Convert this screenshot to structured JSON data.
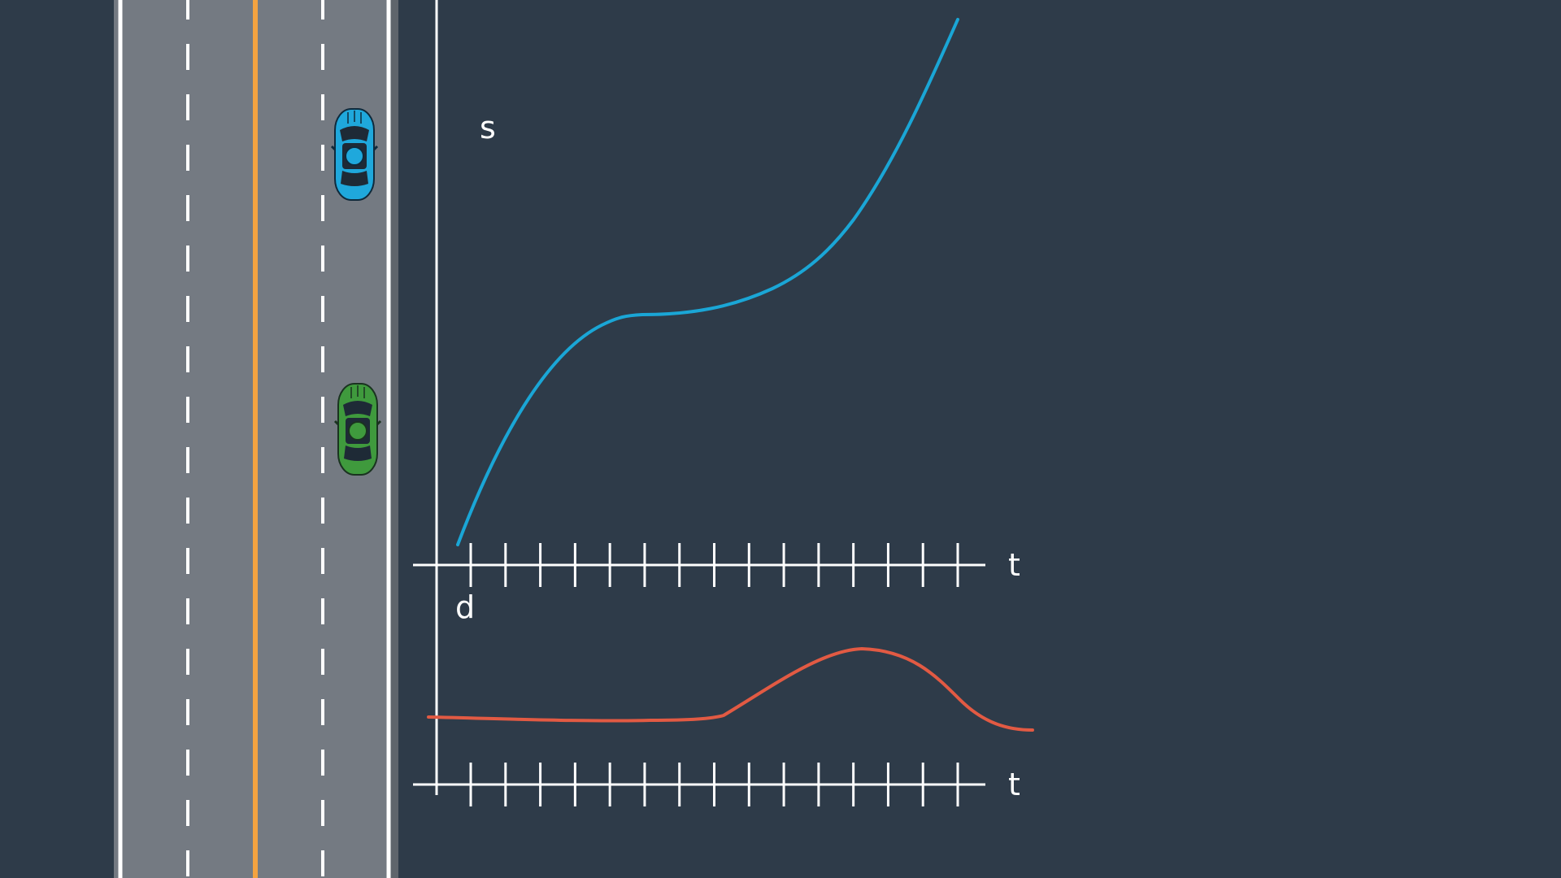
{
  "colors": {
    "background": "#2e3b49",
    "road": "#747a82",
    "road_edge_dark": "#5f656c",
    "lane_marking": "#ffffff",
    "center_line": "#f4a340",
    "s_curve": "#1aa6d6",
    "d_curve": "#e25a43",
    "car_blue": "#1fa8dc",
    "car_green": "#3f9a3d"
  },
  "road": {
    "cars": [
      {
        "name": "blue-car",
        "color_key": "car_blue"
      },
      {
        "name": "green-car",
        "color_key": "car_green"
      }
    ]
  },
  "s_plot": {
    "y_label": "s",
    "x_label": "t",
    "tick_count": 15
  },
  "d_plot": {
    "y_label": "d",
    "x_label": "t",
    "tick_count": 15
  }
}
